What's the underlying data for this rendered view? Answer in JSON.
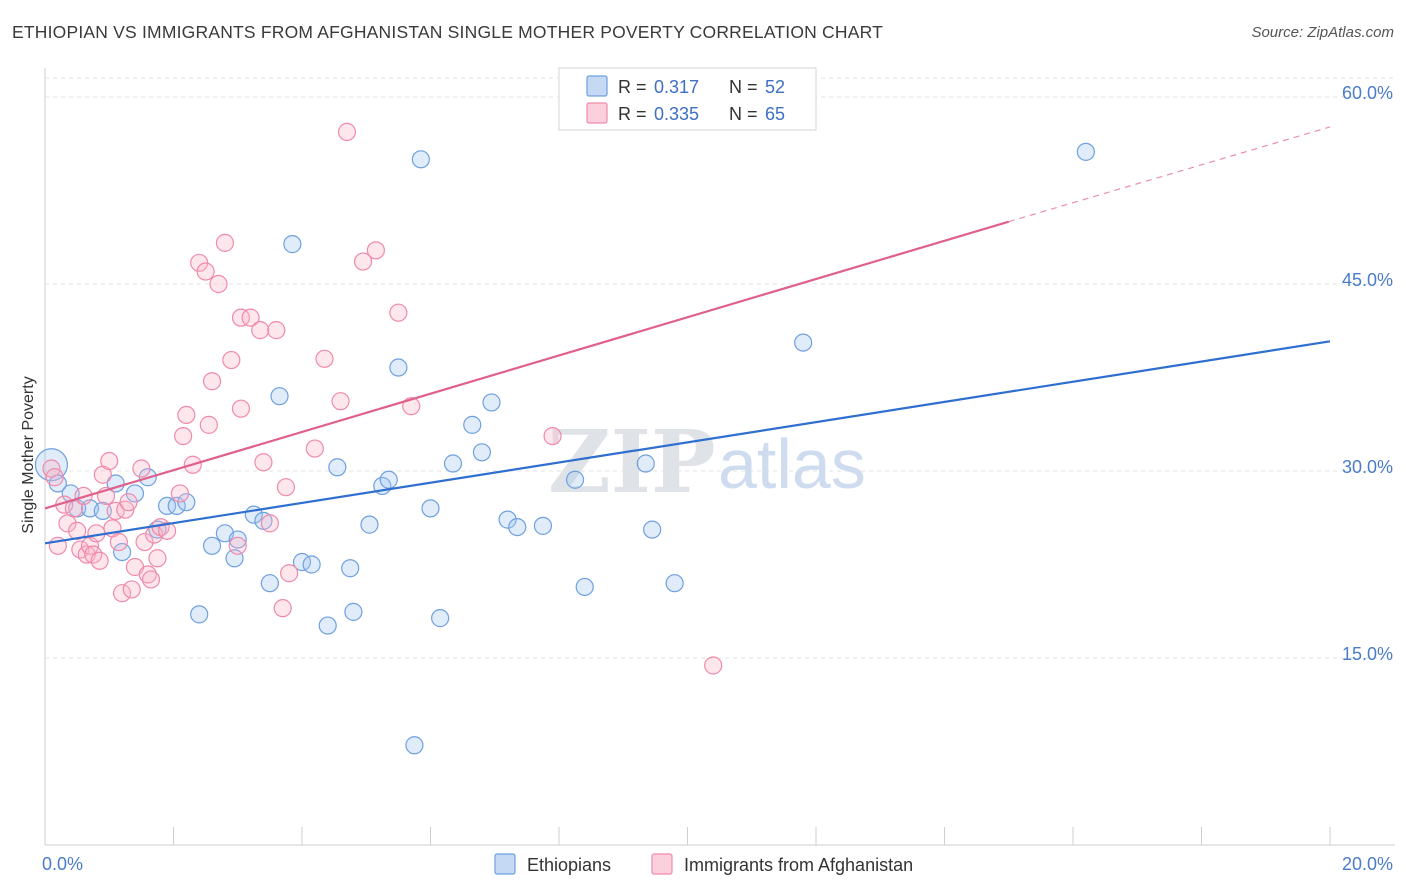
{
  "title": "ETHIOPIAN VS IMMIGRANTS FROM AFGHANISTAN SINGLE MOTHER POVERTY CORRELATION CHART",
  "source": "Source: ZipAtlas.com",
  "watermark": {
    "zip": "ZIP",
    "atlas": "atlas"
  },
  "chart_data": {
    "type": "scatter",
    "title": "ETHIOPIAN VS IMMIGRANTS FROM AFGHANISTAN SINGLE MOTHER POVERTY CORRELATION CHART",
    "xlabel": "",
    "ylabel": "Single Mother Poverty",
    "xlim": [
      0,
      20
    ],
    "ylim": [
      0,
      60
    ],
    "x_tick_labels": [
      {
        "value": 0,
        "label": "0.0%"
      },
      {
        "value": 20,
        "label": "20.0%"
      }
    ],
    "y_tick_labels": [
      {
        "value": 15,
        "label": "15.0%"
      },
      {
        "value": 30,
        "label": "30.0%"
      },
      {
        "value": 45,
        "label": "45.0%"
      },
      {
        "value": 60,
        "label": "60.0%"
      }
    ],
    "grid": true,
    "legend_position": "top-center",
    "colors": {
      "ethiopians": "#6fa0e0",
      "afghanistan": "#f08aaa",
      "ethiopians_line": "#2f6fd0",
      "afghanistan_line": "#e0608c"
    },
    "legend": [
      {
        "r_label": "R =",
        "r_value": "0.317",
        "n_label": "N =",
        "n_value": "52"
      },
      {
        "r_label": "R =",
        "r_value": "0.335",
        "n_label": "N =",
        "n_value": "65"
      }
    ],
    "series": [
      {
        "name": "Ethiopians",
        "color": "#6fa0e0",
        "trend": {
          "x0": 0,
          "y0": 24.2,
          "x1": 20,
          "y1": 40.4
        },
        "points": [
          [
            0.1,
            30.5
          ],
          [
            0.2,
            29.0
          ],
          [
            0.4,
            28.2
          ],
          [
            0.5,
            27.0
          ],
          [
            0.7,
            27.0
          ],
          [
            0.9,
            26.8
          ],
          [
            1.1,
            29.0
          ],
          [
            1.2,
            23.5
          ],
          [
            1.4,
            28.2
          ],
          [
            1.6,
            29.5
          ],
          [
            1.75,
            25.3
          ],
          [
            1.9,
            27.2
          ],
          [
            2.05,
            27.2
          ],
          [
            2.2,
            27.5
          ],
          [
            2.4,
            18.5
          ],
          [
            2.6,
            24.0
          ],
          [
            2.8,
            25.0
          ],
          [
            2.95,
            23.0
          ],
          [
            3.0,
            24.5
          ],
          [
            3.25,
            26.5
          ],
          [
            3.4,
            26.0
          ],
          [
            3.5,
            21.0
          ],
          [
            3.65,
            36.0
          ],
          [
            3.85,
            48.2
          ],
          [
            4.0,
            22.7
          ],
          [
            4.15,
            22.5
          ],
          [
            4.4,
            17.6
          ],
          [
            4.55,
            30.3
          ],
          [
            4.75,
            22.2
          ],
          [
            4.8,
            18.7
          ],
          [
            5.05,
            25.7
          ],
          [
            5.25,
            28.8
          ],
          [
            5.35,
            29.3
          ],
          [
            5.5,
            38.3
          ],
          [
            5.75,
            8.0
          ],
          [
            5.85,
            55.0
          ],
          [
            6.0,
            27.0
          ],
          [
            6.15,
            18.2
          ],
          [
            6.35,
            30.6
          ],
          [
            6.65,
            33.7
          ],
          [
            6.8,
            31.5
          ],
          [
            6.95,
            35.5
          ],
          [
            7.2,
            26.1
          ],
          [
            7.35,
            25.5
          ],
          [
            7.75,
            25.6
          ],
          [
            8.25,
            29.3
          ],
          [
            8.4,
            20.7
          ],
          [
            9.35,
            30.6
          ],
          [
            9.45,
            25.3
          ],
          [
            9.8,
            21.0
          ],
          [
            11.8,
            40.3
          ],
          [
            16.2,
            55.6
          ]
        ]
      },
      {
        "name": "Immigrants from Afghanistan",
        "color": "#f08aaa",
        "trend": {
          "x0": 0,
          "y0": 27.0,
          "x1": 15,
          "y1": 50.0,
          "dash_x1": 20,
          "dash_y1": 57.6
        },
        "points": [
          [
            0.1,
            30.2
          ],
          [
            0.15,
            29.5
          ],
          [
            0.2,
            24.0
          ],
          [
            0.3,
            27.3
          ],
          [
            0.35,
            25.8
          ],
          [
            0.45,
            27.0
          ],
          [
            0.5,
            25.2
          ],
          [
            0.55,
            23.7
          ],
          [
            0.6,
            28.0
          ],
          [
            0.65,
            23.3
          ],
          [
            0.7,
            24.0
          ],
          [
            0.75,
            23.3
          ],
          [
            0.8,
            25.0
          ],
          [
            0.85,
            22.8
          ],
          [
            0.9,
            29.7
          ],
          [
            0.95,
            28.0
          ],
          [
            1.0,
            30.8
          ],
          [
            1.05,
            25.4
          ],
          [
            1.1,
            26.8
          ],
          [
            1.15,
            24.3
          ],
          [
            1.2,
            20.2
          ],
          [
            1.25,
            26.9
          ],
          [
            1.3,
            27.5
          ],
          [
            1.35,
            20.5
          ],
          [
            1.4,
            22.3
          ],
          [
            1.5,
            30.2
          ],
          [
            1.55,
            24.3
          ],
          [
            1.6,
            21.7
          ],
          [
            1.65,
            21.3
          ],
          [
            1.7,
            24.9
          ],
          [
            1.75,
            23.0
          ],
          [
            1.8,
            25.5
          ],
          [
            1.9,
            25.2
          ],
          [
            2.1,
            28.2
          ],
          [
            2.2,
            34.5
          ],
          [
            2.15,
            32.8
          ],
          [
            2.3,
            30.5
          ],
          [
            2.4,
            46.7
          ],
          [
            2.5,
            46.0
          ],
          [
            2.6,
            37.2
          ],
          [
            2.55,
            33.7
          ],
          [
            2.7,
            45.0
          ],
          [
            2.8,
            48.3
          ],
          [
            2.9,
            38.9
          ],
          [
            3.0,
            24.0
          ],
          [
            3.05,
            35.0
          ],
          [
            3.05,
            42.3
          ],
          [
            3.2,
            42.3
          ],
          [
            3.35,
            41.3
          ],
          [
            3.4,
            30.7
          ],
          [
            3.5,
            25.8
          ],
          [
            3.6,
            41.3
          ],
          [
            3.7,
            19.0
          ],
          [
            3.75,
            28.7
          ],
          [
            3.8,
            21.8
          ],
          [
            4.2,
            31.8
          ],
          [
            4.35,
            39.0
          ],
          [
            4.6,
            35.6
          ],
          [
            4.7,
            57.2
          ],
          [
            4.95,
            46.8
          ],
          [
            5.15,
            47.7
          ],
          [
            5.5,
            42.7
          ],
          [
            5.7,
            35.2
          ],
          [
            7.9,
            32.8
          ],
          [
            10.4,
            14.4
          ]
        ]
      }
    ],
    "bottom_legend": [
      "Ethiopians",
      "Immigrants from Afghanistan"
    ]
  }
}
